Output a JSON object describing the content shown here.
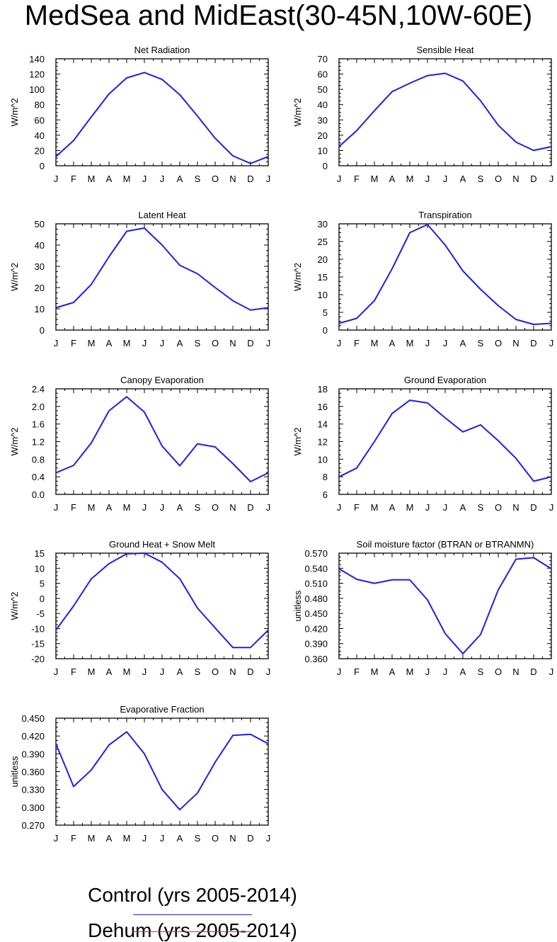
{
  "title": "MedSea and MidEast(30-45N,10W-60E)",
  "colors": {
    "control": "#2020dd",
    "dehum": "#ee2020"
  },
  "legend": [
    {
      "label": "Control (yrs 2005-2014)",
      "color": "#2020dd"
    },
    {
      "label": "Dehum (yrs 2005-2014)",
      "color": "#ee2020"
    }
  ],
  "chart_data": [
    {
      "type": "line",
      "title": "Net Radiation",
      "ylabel": "W/m^2",
      "categories": [
        "J",
        "F",
        "M",
        "A",
        "M",
        "J",
        "J",
        "A",
        "S",
        "O",
        "N",
        "D",
        "J"
      ],
      "ylim": [
        0,
        140
      ],
      "yticks": [
        "0",
        "20",
        "40",
        "60",
        "80",
        "100",
        "120",
        "140"
      ],
      "series": [
        {
          "values": [
            12,
            33,
            64,
            94,
            115,
            122,
            113,
            93,
            65,
            36,
            13,
            3,
            12
          ]
        }
      ]
    },
    {
      "type": "line",
      "title": "Sensible Heat",
      "ylabel": "W/m^2",
      "categories": [
        "J",
        "F",
        "M",
        "A",
        "M",
        "J",
        "J",
        "A",
        "S",
        "O",
        "N",
        "D",
        "J"
      ],
      "ylim": [
        0,
        70
      ],
      "yticks": [
        "0",
        "10",
        "20",
        "30",
        "40",
        "50",
        "60",
        "70"
      ],
      "series": [
        {
          "values": [
            12.5,
            23,
            36,
            48.5,
            54,
            59,
            60.5,
            55.5,
            42.5,
            26.5,
            15.5,
            10,
            12.5
          ]
        }
      ]
    },
    {
      "type": "line",
      "title": "Latent Heat",
      "ylabel": "W/m^2",
      "categories": [
        "J",
        "F",
        "M",
        "A",
        "M",
        "J",
        "J",
        "A",
        "S",
        "O",
        "N",
        "D",
        "J"
      ],
      "ylim": [
        0,
        50
      ],
      "yticks": [
        "0",
        "10",
        "20",
        "30",
        "40",
        "50"
      ],
      "series": [
        {
          "values": [
            10.5,
            13,
            21.5,
            34.5,
            46.5,
            48,
            40,
            30.5,
            26.5,
            20,
            13.8,
            9.4,
            10.5
          ]
        }
      ]
    },
    {
      "type": "line",
      "title": "Transpiration",
      "ylabel": "W/m^2",
      "categories": [
        "J",
        "F",
        "M",
        "A",
        "M",
        "J",
        "J",
        "A",
        "S",
        "O",
        "N",
        "D",
        "J"
      ],
      "ylim": [
        0,
        30
      ],
      "yticks": [
        "0",
        "5",
        "10",
        "15",
        "20",
        "25",
        "30"
      ],
      "series": [
        {
          "values": [
            1.9,
            3.3,
            8.3,
            17.3,
            27.5,
            29.8,
            24,
            16.7,
            11.5,
            6.9,
            3,
            1.6,
            1.9
          ]
        }
      ]
    },
    {
      "type": "line",
      "title": "Canopy Evaporation",
      "ylabel": "W/m^2",
      "categories": [
        "J",
        "F",
        "M",
        "A",
        "M",
        "J",
        "J",
        "A",
        "S",
        "O",
        "N",
        "D",
        "J"
      ],
      "ylim": [
        0,
        2.4
      ],
      "yticks": [
        "0.0",
        "0.4",
        "0.8",
        "1.2",
        "1.6",
        "2.0",
        "2.4"
      ],
      "series": [
        {
          "values": [
            0.49,
            0.66,
            1.17,
            1.9,
            2.22,
            1.87,
            1.1,
            0.65,
            1.15,
            1.08,
            0.7,
            0.29,
            0.49
          ]
        }
      ]
    },
    {
      "type": "line",
      "title": "Ground Evaporation",
      "ylabel": "W/m^2",
      "categories": [
        "J",
        "F",
        "M",
        "A",
        "M",
        "J",
        "J",
        "A",
        "S",
        "O",
        "N",
        "D",
        "J"
      ],
      "ylim": [
        6,
        18
      ],
      "yticks": [
        "6",
        "8",
        "10",
        "12",
        "14",
        "16",
        "18"
      ],
      "series": [
        {
          "values": [
            8,
            9,
            12,
            15.2,
            16.7,
            16.4,
            14.7,
            13.1,
            13.9,
            12.1,
            10.1,
            7.5,
            8
          ]
        }
      ]
    },
    {
      "type": "line",
      "title": "Ground Heat + Snow Melt",
      "ylabel": "W/m^2",
      "categories": [
        "J",
        "F",
        "M",
        "A",
        "M",
        "J",
        "J",
        "A",
        "S",
        "O",
        "N",
        "D",
        "J"
      ],
      "ylim": [
        -20,
        15
      ],
      "yticks": [
        "-20",
        "-15",
        "-10",
        "-5",
        "0",
        "5",
        "10",
        "15"
      ],
      "series": [
        {
          "values": [
            -10.5,
            -2.5,
            6.5,
            11.5,
            14.8,
            15,
            12,
            6.5,
            -3.2,
            -9.8,
            -16.3,
            -16.3,
            -10.5
          ]
        }
      ]
    },
    {
      "type": "line",
      "title": "Soil moisture factor (BTRAN or BTRANMN)",
      "ylabel": "unitless",
      "categories": [
        "J",
        "F",
        "M",
        "A",
        "M",
        "J",
        "J",
        "A",
        "S",
        "O",
        "N",
        "D",
        "J"
      ],
      "ylim": [
        0.36,
        0.57
      ],
      "yticks": [
        "0.360",
        "0.390",
        "0.420",
        "0.450",
        "0.480",
        "0.510",
        "0.540",
        "0.570"
      ],
      "series": [
        {
          "values": [
            0.539,
            0.518,
            0.51,
            0.517,
            0.517,
            0.477,
            0.41,
            0.37,
            0.408,
            0.497,
            0.558,
            0.561,
            0.539
          ]
        }
      ]
    },
    {
      "type": "line",
      "title": "Evaporative Fraction",
      "ylabel": "unitless",
      "categories": [
        "J",
        "F",
        "M",
        "A",
        "M",
        "J",
        "J",
        "A",
        "S",
        "O",
        "N",
        "D",
        "J"
      ],
      "ylim": [
        0.27,
        0.45
      ],
      "yticks": [
        "0.270",
        "0.300",
        "0.330",
        "0.360",
        "0.390",
        "0.420",
        "0.450"
      ],
      "series": [
        {
          "values": [
            0.407,
            0.335,
            0.363,
            0.405,
            0.427,
            0.39,
            0.33,
            0.296,
            0.324,
            0.376,
            0.421,
            0.423,
            0.407
          ]
        }
      ]
    }
  ]
}
